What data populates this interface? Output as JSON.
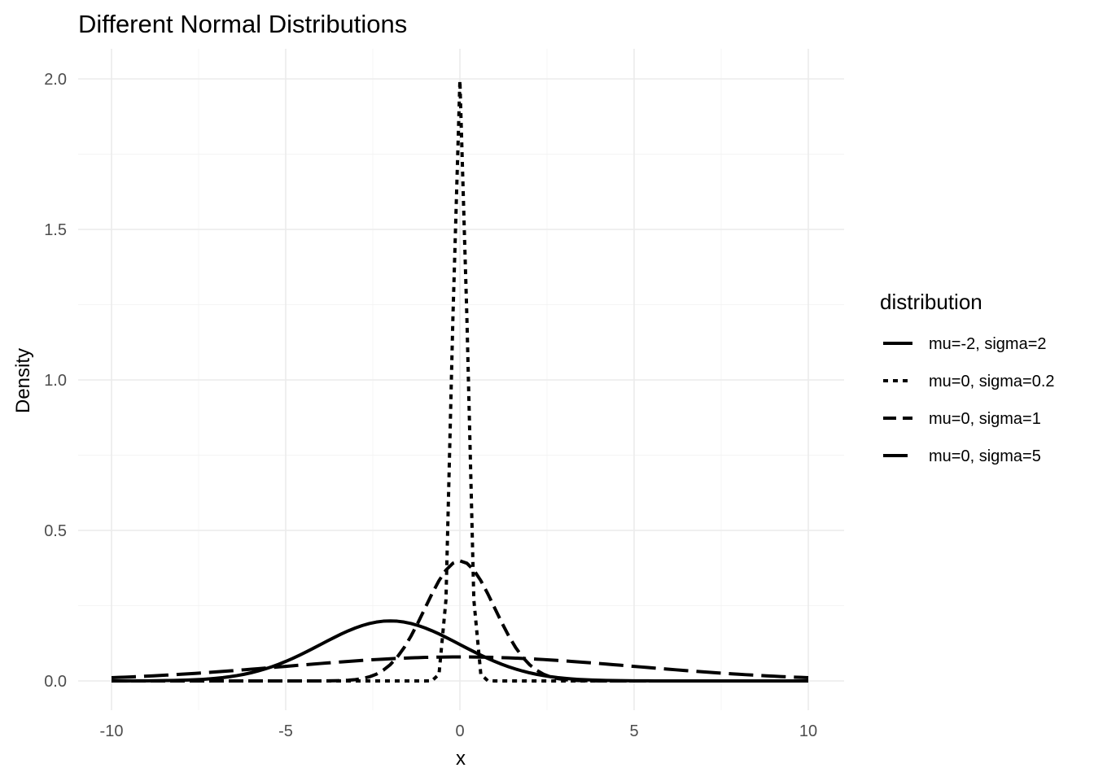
{
  "chart_data": {
    "type": "line",
    "title": "Different Normal Distributions",
    "xlabel": "x",
    "ylabel": "Density",
    "xlim": [
      -10,
      10
    ],
    "ylim": [
      0,
      2
    ],
    "x_ticks": [
      -10,
      -5,
      0,
      5,
      10
    ],
    "x_tick_labels": [
      "-10",
      "-5",
      "0",
      "5",
      "10"
    ],
    "y_ticks": [
      0,
      0.5,
      1,
      1.5,
      2
    ],
    "y_tick_labels": [
      "0.0",
      "0.5",
      "1.0",
      "1.5",
      "2.0"
    ],
    "grid": true,
    "legend": {
      "title": "distribution",
      "position": "right"
    },
    "series": [
      {
        "name": "mu=-2, sigma=2",
        "mu": -2,
        "sigma": 2,
        "line_style": "solid",
        "color": "#000000"
      },
      {
        "name": "mu=0, sigma=0.2",
        "mu": 0,
        "sigma": 0.2,
        "line_style": "dotted",
        "color": "#000000"
      },
      {
        "name": "mu=0, sigma=1",
        "mu": 0,
        "sigma": 1,
        "line_style": "dashed",
        "color": "#000000"
      },
      {
        "name": "mu=0, sigma=5",
        "mu": 0,
        "sigma": 5,
        "line_style": "longdash",
        "color": "#000000"
      }
    ]
  }
}
